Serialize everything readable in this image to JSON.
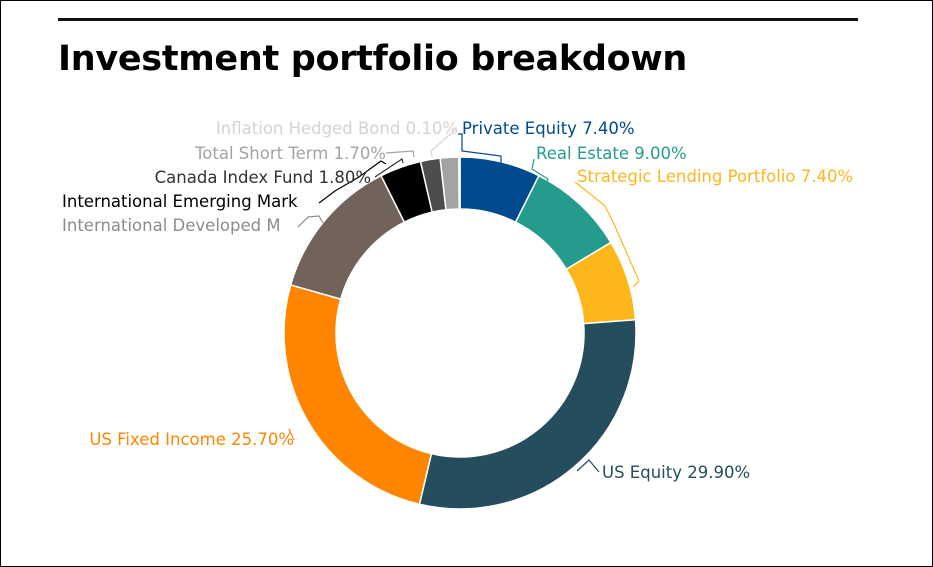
{
  "chart_data": {
    "type": "pie",
    "donut": true,
    "title": "Investment portfolio breakdown",
    "unit": "%",
    "slices": [
      {
        "name": "Private Equity",
        "value": 7.4,
        "label": "Private Equity 7.40%",
        "color": "#004A8D"
      },
      {
        "name": "Real Estate",
        "value": 9.0,
        "label": "Real Estate 9.00%",
        "color": "#259B8B"
      },
      {
        "name": "Strategic Lending Portfolio",
        "value": 7.4,
        "label": "Strategic Lending Portfolio 7.40%",
        "color": "#FDB71C"
      },
      {
        "name": "US Equity",
        "value": 29.9,
        "label": "US Equity 29.90%",
        "color": "#244D5D"
      },
      {
        "name": "US Fixed Income",
        "value": 25.7,
        "label": "US Fixed Income 25.70%",
        "color": "#FF8500"
      },
      {
        "name": "International Developed Markets",
        "value": 13.2,
        "label": "International Developed M",
        "color": "#716359"
      },
      {
        "name": "International Emerging Markets",
        "value": 3.8,
        "label": "International Emerging Mark",
        "color": "#000000"
      },
      {
        "name": "Canada Index Fund",
        "value": 1.8,
        "label": "Canada Index Fund 1.80%",
        "color": "#4D4D4D"
      },
      {
        "name": "Total Short Term",
        "value": 1.7,
        "label": "Total Short Term 1.70%",
        "color": "#A3A3A3"
      },
      {
        "name": "Inflation Hedged Bond",
        "value": 0.1,
        "label": "Inflation Hedged Bond 0.10%",
        "color": "#D3D3D3"
      }
    ],
    "label_colors": {
      "Private Equity": "#004A8D",
      "Real Estate": "#259B8B",
      "Strategic Lending Portfolio": "#FDB71C",
      "US Equity": "#244D5D",
      "US Fixed Income": "#FF8500",
      "International Developed Markets": "#8C8C8C",
      "International Emerging Markets": "#000000",
      "Canada Index Fund": "#333333",
      "Total Short Term": "#A3A3A3",
      "Inflation Hedged Bond": "#D3D3D3"
    },
    "legend": "none"
  }
}
